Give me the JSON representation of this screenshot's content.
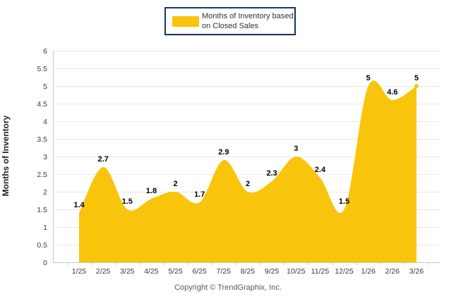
{
  "legend": {
    "label": "Months of Inventory based on Closed Sales",
    "swatch_color": "#F8C50C"
  },
  "chart_data": {
    "type": "area",
    "title": "",
    "categories": [
      "1/25",
      "2/25",
      "3/25",
      "4/25",
      "5/25",
      "6/25",
      "7/25",
      "8/25",
      "9/25",
      "10/25",
      "11/25",
      "12/25",
      "1/26",
      "2/26",
      "3/26"
    ],
    "values": [
      1.4,
      2.7,
      1.5,
      1.8,
      2,
      1.7,
      2.9,
      2,
      2.3,
      3,
      2.4,
      1.5,
      5,
      4.6,
      5
    ],
    "series_name": "Months of Inventory based on Closed Sales",
    "xlabel": "",
    "ylabel": "Months of Inventory",
    "ylim": [
      0,
      6
    ],
    "ytick_step": 0.5,
    "grid": true,
    "smooth": true,
    "data_labels": true,
    "last_point_marker": true,
    "legend_position": "top-center",
    "fill_color": "#F8C50C"
  },
  "colors": {
    "grid": "#E8E8E8",
    "axis": "#C9C9C9",
    "tick_label": "#3A3A3A",
    "data_label": "#000000"
  },
  "footer": {
    "copyright": "Copyright © TrendGraphix, Inc."
  }
}
